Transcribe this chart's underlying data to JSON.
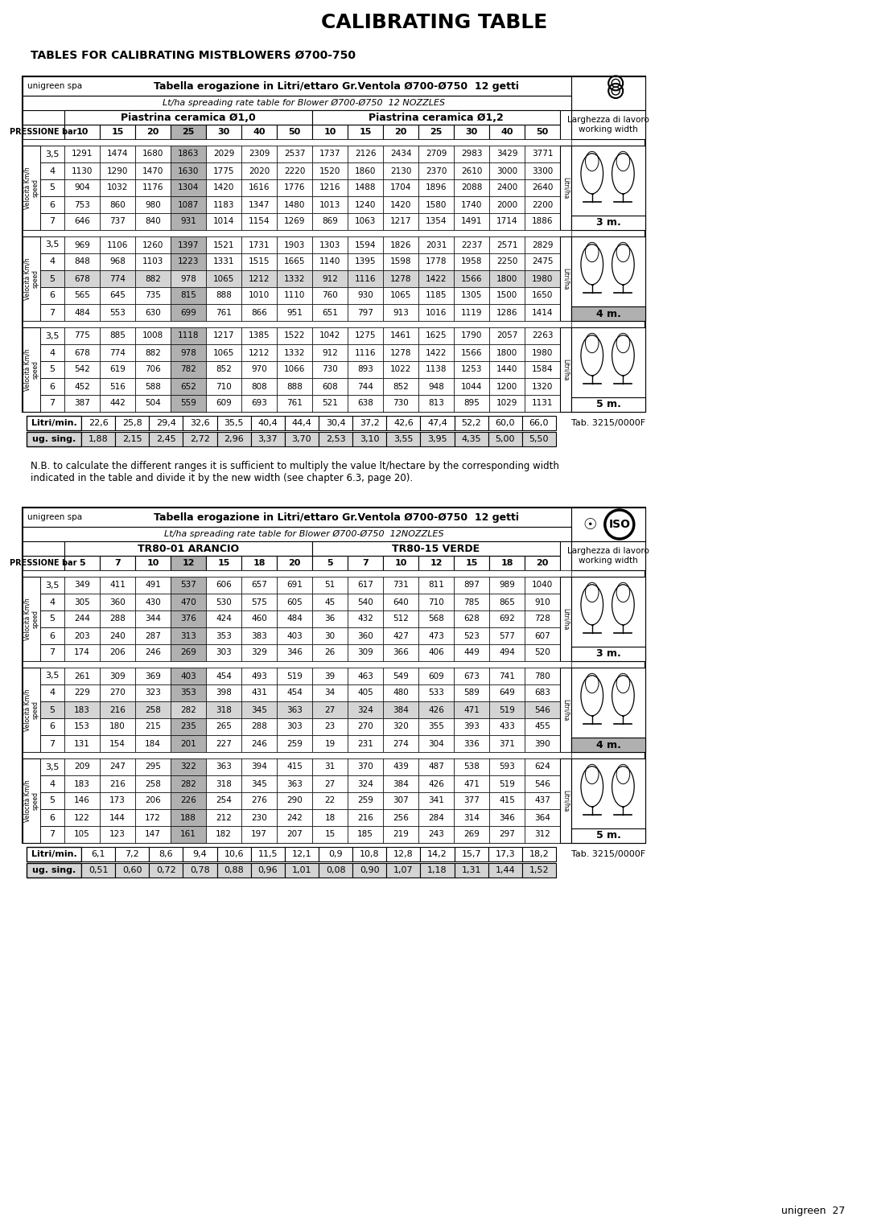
{
  "title": "CALIBRATING TABLE",
  "subtitle": "TABLES FOR CALIBRATING MISTBLOWERS Ø700-750",
  "table1": {
    "header1": "Tabella erogazione in Litri/ettaro Gr.Ventola Ø700-Ø750  12 getti",
    "header2": "Lt/ha spreading rate table for Blower Ø700-Ø750  12 NOZZLES",
    "col_header_left": "Piastrina ceramica Ø1,0",
    "col_header_right": "Piastrina ceramica Ø1,2",
    "pressures_left": [
      "10",
      "15",
      "20",
      "25",
      "30",
      "40",
      "50"
    ],
    "pressures_right": [
      "10",
      "15",
      "20",
      "25",
      "30",
      "40",
      "50"
    ],
    "highlight_pressure_left": "25",
    "highlight_pressure_right": null,
    "sections": [
      {
        "speeds": [
          "3,5",
          "4",
          "5",
          "6",
          "7"
        ],
        "data_left": [
          [
            1291,
            1474,
            1680,
            1863,
            2029,
            2309,
            2537
          ],
          [
            1130,
            1290,
            1470,
            1630,
            1775,
            2020,
            2220
          ],
          [
            904,
            1032,
            1176,
            1304,
            1420,
            1616,
            1776
          ],
          [
            753,
            860,
            980,
            1087,
            1183,
            1347,
            1480
          ],
          [
            646,
            737,
            840,
            931,
            1014,
            1154,
            1269
          ]
        ],
        "data_right": [
          [
            1737,
            2126,
            2434,
            2709,
            2983,
            3429,
            3771
          ],
          [
            1520,
            1860,
            2130,
            2370,
            2610,
            3000,
            3300
          ],
          [
            1216,
            1488,
            1704,
            1896,
            2088,
            2400,
            2640
          ],
          [
            1013,
            1240,
            1420,
            1580,
            1740,
            2000,
            2200
          ],
          [
            869,
            1063,
            1217,
            1354,
            1491,
            1714,
            1886
          ]
        ],
        "width": "3 m.",
        "highlight_row": null,
        "width_bg": "white"
      },
      {
        "speeds": [
          "3,5",
          "4",
          "5",
          "6",
          "7"
        ],
        "data_left": [
          [
            969,
            1106,
            1260,
            1397,
            1521,
            1731,
            1903
          ],
          [
            848,
            968,
            1103,
            1223,
            1331,
            1515,
            1665
          ],
          [
            678,
            774,
            882,
            978,
            1065,
            1212,
            1332
          ],
          [
            565,
            645,
            735,
            815,
            888,
            1010,
            1110
          ],
          [
            484,
            553,
            630,
            699,
            761,
            866,
            951
          ]
        ],
        "data_right": [
          [
            1303,
            1594,
            1826,
            2031,
            2237,
            2571,
            2829
          ],
          [
            1140,
            1395,
            1598,
            1778,
            1958,
            2250,
            2475
          ],
          [
            912,
            1116,
            1278,
            1422,
            1566,
            1800,
            1980
          ],
          [
            760,
            930,
            1065,
            1185,
            1305,
            1500,
            1650
          ],
          [
            651,
            797,
            913,
            1016,
            1119,
            1286,
            1414
          ]
        ],
        "width": "4 m.",
        "highlight_row": 2,
        "width_bg": "gray"
      },
      {
        "speeds": [
          "3,5",
          "4",
          "5",
          "6",
          "7"
        ],
        "data_left": [
          [
            775,
            885,
            1008,
            1118,
            1217,
            1385,
            1522
          ],
          [
            678,
            774,
            882,
            978,
            1065,
            1212,
            1332
          ],
          [
            542,
            619,
            706,
            782,
            852,
            970,
            1066
          ],
          [
            452,
            516,
            588,
            652,
            710,
            808,
            888
          ],
          [
            387,
            442,
            504,
            559,
            609,
            693,
            761
          ]
        ],
        "data_right": [
          [
            1042,
            1275,
            1461,
            1625,
            1790,
            2057,
            2263
          ],
          [
            912,
            1116,
            1278,
            1422,
            1566,
            1800,
            1980
          ],
          [
            730,
            893,
            1022,
            1138,
            1253,
            1440,
            1584
          ],
          [
            608,
            744,
            852,
            948,
            1044,
            1200,
            1320
          ],
          [
            521,
            638,
            730,
            813,
            895,
            1029,
            1131
          ]
        ],
        "width": "5 m.",
        "highlight_row": null,
        "width_bg": "white"
      }
    ],
    "litri_min": [
      "22,6",
      "25,8",
      "29,4",
      "32,6",
      "35,5",
      "40,4",
      "44,4",
      "30,4",
      "37,2",
      "42,6",
      "47,4",
      "52,2",
      "60,0",
      "66,0"
    ],
    "ug_sing": [
      "1,88",
      "2,15",
      "2,45",
      "2,72",
      "2,96",
      "3,37",
      "3,70",
      "2,53",
      "3,10",
      "3,55",
      "3,95",
      "4,35",
      "5,00",
      "5,50"
    ],
    "tab_ref": "Tab. 3215/0000F"
  },
  "note": "N.B. to calculate the different ranges it is sufficient to multiply the value lt/hectare by the corresponding width\nindicated in the table and divide it by the new width (see chapter 6.3, page 20).",
  "table2": {
    "header1": "Tabella erogazione in Litri/ettaro Gr.Ventola Ø700-Ø750  12 getti",
    "header2": "Lt/ha spreading rate table for Blower Ø700-Ø750  12NOZZLES",
    "col_header_left": "TR80-01 ARANCIO",
    "col_header_right": "TR80-15 VERDE",
    "pressures_left": [
      "5",
      "7",
      "10",
      "12",
      "15",
      "18",
      "20"
    ],
    "pressures_right": [
      "5",
      "7",
      "10",
      "12",
      "15",
      "18",
      "20"
    ],
    "highlight_pressure_left": "12",
    "highlight_pressure_right": null,
    "sections": [
      {
        "speeds": [
          "3,5",
          "4",
          "5",
          "6",
          "7"
        ],
        "data_left": [
          [
            349,
            411,
            491,
            537,
            606,
            657,
            691
          ],
          [
            305,
            360,
            430,
            470,
            530,
            575,
            605
          ],
          [
            244,
            288,
            344,
            376,
            424,
            460,
            484
          ],
          [
            203,
            240,
            287,
            313,
            353,
            383,
            403
          ],
          [
            174,
            206,
            246,
            269,
            303,
            329,
            346
          ]
        ],
        "data_right": [
          [
            51,
            617,
            731,
            811,
            897,
            989,
            1040
          ],
          [
            45,
            540,
            640,
            710,
            785,
            865,
            910
          ],
          [
            36,
            432,
            512,
            568,
            628,
            692,
            728
          ],
          [
            30,
            360,
            427,
            473,
            523,
            577,
            607
          ],
          [
            26,
            309,
            366,
            406,
            449,
            494,
            520
          ]
        ],
        "width": "3 m.",
        "highlight_row": null,
        "width_bg": "white"
      },
      {
        "speeds": [
          "3,5",
          "4",
          "5",
          "6",
          "7"
        ],
        "data_left": [
          [
            261,
            309,
            369,
            403,
            454,
            493,
            519
          ],
          [
            229,
            270,
            323,
            353,
            398,
            431,
            454
          ],
          [
            183,
            216,
            258,
            282,
            318,
            345,
            363
          ],
          [
            153,
            180,
            215,
            235,
            265,
            288,
            303
          ],
          [
            131,
            154,
            184,
            201,
            227,
            246,
            259
          ]
        ],
        "data_right": [
          [
            39,
            463,
            549,
            609,
            673,
            741,
            780
          ],
          [
            34,
            405,
            480,
            533,
            589,
            649,
            683
          ],
          [
            27,
            324,
            384,
            426,
            471,
            519,
            546
          ],
          [
            23,
            270,
            320,
            355,
            393,
            433,
            455
          ],
          [
            19,
            231,
            274,
            304,
            336,
            371,
            390
          ]
        ],
        "width": "4 m.",
        "highlight_row": 2,
        "width_bg": "gray"
      },
      {
        "speeds": [
          "3,5",
          "4",
          "5",
          "6",
          "7"
        ],
        "data_left": [
          [
            209,
            247,
            295,
            322,
            363,
            394,
            415
          ],
          [
            183,
            216,
            258,
            282,
            318,
            345,
            363
          ],
          [
            146,
            173,
            206,
            226,
            254,
            276,
            290
          ],
          [
            122,
            144,
            172,
            188,
            212,
            230,
            242
          ],
          [
            105,
            123,
            147,
            161,
            182,
            197,
            207
          ]
        ],
        "data_right": [
          [
            31,
            370,
            439,
            487,
            538,
            593,
            624
          ],
          [
            27,
            324,
            384,
            426,
            471,
            519,
            546
          ],
          [
            22,
            259,
            307,
            341,
            377,
            415,
            437
          ],
          [
            18,
            216,
            256,
            284,
            314,
            346,
            364
          ],
          [
            15,
            185,
            219,
            243,
            269,
            297,
            312
          ]
        ],
        "width": "5 m.",
        "highlight_row": null,
        "width_bg": "white"
      }
    ],
    "litri_min": [
      "6,1",
      "7,2",
      "8,6",
      "9,4",
      "10,6",
      "11,5",
      "12,1",
      "0,9",
      "10,8",
      "12,8",
      "14,2",
      "15,7",
      "17,3",
      "18,2"
    ],
    "ug_sing": [
      "0,51",
      "0,60",
      "0,72",
      "0,78",
      "0,88",
      "0,96",
      "1,01",
      "0,08",
      "0,90",
      "1,07",
      "1,18",
      "1,31",
      "1,44",
      "1,52"
    ],
    "tab_ref": "Tab. 3215/0000F"
  },
  "footer": "unigreen  27"
}
